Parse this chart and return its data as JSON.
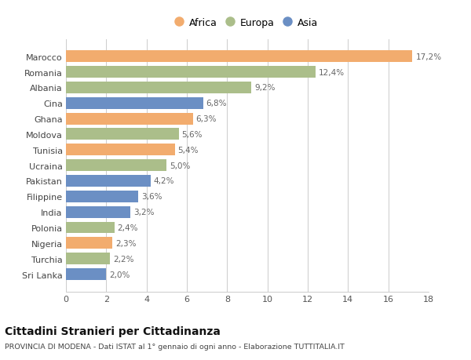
{
  "categories": [
    "Sri Lanka",
    "Turchia",
    "Nigeria",
    "Polonia",
    "India",
    "Filippine",
    "Pakistan",
    "Ucraina",
    "Tunisia",
    "Moldova",
    "Ghana",
    "Cina",
    "Albania",
    "Romania",
    "Marocco"
  ],
  "values": [
    2.0,
    2.2,
    2.3,
    2.4,
    3.2,
    3.6,
    4.2,
    5.0,
    5.4,
    5.6,
    6.3,
    6.8,
    9.2,
    12.4,
    17.2
  ],
  "continents": [
    "Asia",
    "Europa",
    "Africa",
    "Europa",
    "Asia",
    "Asia",
    "Asia",
    "Europa",
    "Africa",
    "Europa",
    "Africa",
    "Asia",
    "Europa",
    "Europa",
    "Africa"
  ],
  "colors": {
    "Africa": "#F2AC6E",
    "Europa": "#ABBE8A",
    "Asia": "#6B8FC4"
  },
  "legend_labels": [
    "Africa",
    "Europa",
    "Asia"
  ],
  "legend_colors": [
    "#F2AC6E",
    "#ABBE8A",
    "#6B8FC4"
  ],
  "xlim": [
    0,
    18
  ],
  "xticks": [
    0,
    2,
    4,
    6,
    8,
    10,
    12,
    14,
    16,
    18
  ],
  "title": "Cittadini Stranieri per Cittadinanza",
  "subtitle": "PROVINCIA DI MODENA - Dati ISTAT al 1° gennaio di ogni anno - Elaborazione TUTTITALIA.IT",
  "background_color": "#ffffff",
  "bar_height": 0.75,
  "grid_color": "#cccccc",
  "value_label_color": "#666666"
}
